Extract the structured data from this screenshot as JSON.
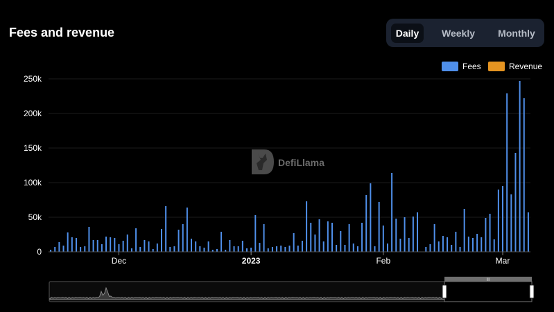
{
  "header": {
    "title": "Fees and revenue"
  },
  "tabs": [
    {
      "label": "Daily",
      "active": true
    },
    {
      "label": "Weekly",
      "active": false
    },
    {
      "label": "Monthly",
      "active": false
    }
  ],
  "watermark": "DefiLlama",
  "colors": {
    "fees": "#4f8fea",
    "revenue": "#e59421",
    "background": "#000000",
    "panel": "#1b2230"
  },
  "chart_data": {
    "type": "bar",
    "title": "Fees and revenue",
    "legend_position": "top-right",
    "grid": true,
    "ylim": [
      0,
      250000
    ],
    "y_ticks": [
      {
        "value": 0,
        "label": "0"
      },
      {
        "value": 50000,
        "label": "50k"
      },
      {
        "value": 100000,
        "label": "100k"
      },
      {
        "value": 150000,
        "label": "150k"
      },
      {
        "value": 200000,
        "label": "200k"
      },
      {
        "value": 250000,
        "label": "250k"
      }
    ],
    "x_ticks": [
      {
        "index": 16,
        "label": "Dec",
        "bold": false
      },
      {
        "index": 47,
        "label": "2023",
        "bold": true
      },
      {
        "index": 78,
        "label": "Feb",
        "bold": false
      },
      {
        "index": 106,
        "label": "Mar",
        "bold": false
      }
    ],
    "series": [
      {
        "name": "Fees",
        "color": "#4f8fea",
        "values": [
          3000,
          7000,
          14000,
          9000,
          28000,
          21000,
          20000,
          7000,
          8000,
          36000,
          17000,
          17000,
          11000,
          22000,
          21000,
          20000,
          11000,
          16000,
          25000,
          5000,
          34000,
          7000,
          17000,
          15000,
          4000,
          12000,
          33000,
          66000,
          7000,
          8000,
          32000,
          40000,
          64000,
          19000,
          15000,
          8000,
          6000,
          15000,
          3000,
          4000,
          29000,
          3000,
          17000,
          8000,
          8000,
          16000,
          5000,
          6000,
          53000,
          13000,
          40000,
          5000,
          7000,
          8000,
          9000,
          7000,
          9000,
          27000,
          9000,
          16000,
          73000,
          42000,
          25000,
          47000,
          15000,
          44000,
          42000,
          10000,
          30000,
          10000,
          40000,
          12000,
          8000,
          42000,
          82000,
          99000,
          8000,
          72000,
          38000,
          12000,
          114000,
          48000,
          19000,
          50000,
          20000,
          51000,
          57000,
          0,
          7000,
          11000,
          40000,
          15000,
          23000,
          21000,
          10000,
          29000,
          7000,
          62000,
          22000,
          20000,
          26000,
          21000,
          49000,
          55000,
          18000,
          90000,
          95000,
          229000,
          83000,
          143000,
          247000,
          222000,
          57000
        ]
      },
      {
        "name": "Revenue",
        "color": "#e59421",
        "values": []
      }
    ]
  },
  "minimap": {
    "handle_label": "III"
  }
}
